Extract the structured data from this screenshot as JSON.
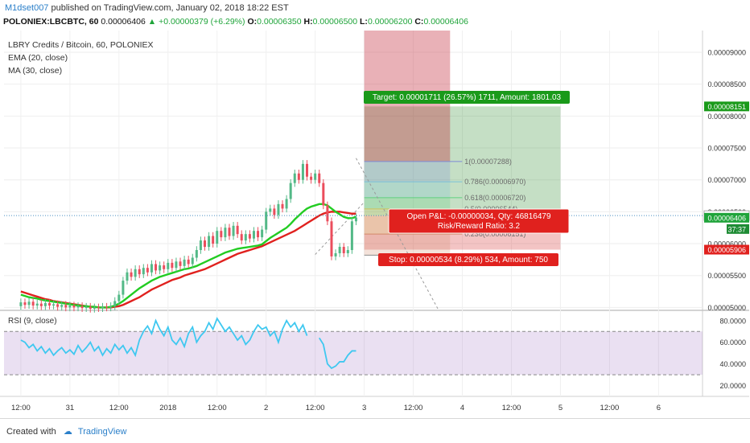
{
  "header": {
    "publisher": "M1dset007",
    "published_text": "published on TradingView.com, January 02, 2018 18:22 EST",
    "symbol": "POLONIEX:LBCBTC, 60",
    "last": "0.00006406",
    "change": "+0.00000379 (+6.29%)",
    "open_label": "O:",
    "open": "0.00006350",
    "high_label": "H:",
    "high": "0.00006500",
    "low_label": "L:",
    "low": "0.00006200",
    "close_label": "C:",
    "close": "0.00006406"
  },
  "footer": {
    "created_with": "Created with",
    "brand": "TradingView"
  },
  "colors": {
    "up": "#53b987",
    "down": "#eb4d5c",
    "ema": "#22cc22",
    "ma": "#e0211e",
    "rsi": "#3fc8f0",
    "rsi_band": "#7b3fae",
    "target": "#1a9a1a",
    "stop": "#e0211e"
  },
  "chart_data": {
    "type": "candlestick",
    "title": "LBRY Credits / Bitcoin, 60, POLONIEX",
    "indicators": [
      "EMA (20, close)",
      "MA (30, close)"
    ],
    "y_ticks": [
      "0.00009000",
      "0.00008500",
      "0.00008000",
      "0.00007500",
      "0.00007000",
      "0.00006500",
      "0.00006000",
      "0.00005500",
      "0.00005000"
    ],
    "ylim": [
      4.98e-05,
      9.34e-05
    ],
    "x_ticks": [
      {
        "label": "12:00",
        "t": 0
      },
      {
        "label": "31",
        "t": 12
      },
      {
        "label": "12:00",
        "t": 24
      },
      {
        "label": "2018",
        "t": 36
      },
      {
        "label": "12:00",
        "t": 48
      },
      {
        "label": "2",
        "t": 60
      },
      {
        "label": "12:00",
        "t": 72
      },
      {
        "label": "3",
        "t": 84
      },
      {
        "label": "12:00",
        "t": 96
      },
      {
        "label": "4",
        "t": 108
      },
      {
        "label": "12:00",
        "t": 120
      },
      {
        "label": "5",
        "t": 132
      },
      {
        "label": "12:00",
        "t": 144
      },
      {
        "label": "6",
        "t": 156
      }
    ],
    "price_badges": [
      {
        "label": "0.00008151",
        "value": 8.151e-05,
        "color": "#1a9a1a"
      },
      {
        "label": "0.00006440",
        "value": 6.44e-05,
        "color": "#ffffff",
        "text_color": "#000000"
      },
      {
        "label": "0.00006406",
        "value": 6.406e-05,
        "color": "#1fa43a"
      },
      {
        "label": "0.00005906",
        "value": 5.906e-05,
        "color": "#e0211e"
      }
    ],
    "countdown": "37:37",
    "candles": [
      {
        "o": 5.02,
        "c": 5.08
      },
      {
        "o": 5.08,
        "c": 5.04
      },
      {
        "o": 5.04,
        "c": 5.09
      },
      {
        "o": 5.09,
        "c": 5.03
      },
      {
        "o": 5.03,
        "c": 5.06
      },
      {
        "o": 5.06,
        "c": 5.02
      },
      {
        "o": 5.02,
        "c": 5.07
      },
      {
        "o": 5.07,
        "c": 5.03
      },
      {
        "o": 5.03,
        "c": 5.05
      },
      {
        "o": 5.05,
        "c": 5.01
      },
      {
        "o": 5.01,
        "c": 5.04
      },
      {
        "o": 5.04,
        "c": 5.0
      },
      {
        "o": 5.0,
        "c": 5.03
      },
      {
        "o": 5.03,
        "c": 5.0
      },
      {
        "o": 5.0,
        "c": 5.02
      },
      {
        "o": 5.02,
        "c": 4.99
      },
      {
        "o": 4.99,
        "c": 5.01
      },
      {
        "o": 5.01,
        "c": 4.98
      },
      {
        "o": 4.98,
        "c": 5.0
      },
      {
        "o": 5.0,
        "c": 4.99
      },
      {
        "o": 4.99,
        "c": 5.01
      },
      {
        "o": 5.01,
        "c": 5.0
      },
      {
        "o": 5.0,
        "c": 5.02
      },
      {
        "o": 5.02,
        "c": 5.1
      },
      {
        "o": 5.1,
        "c": 5.2
      },
      {
        "o": 5.2,
        "c": 5.42
      },
      {
        "o": 5.42,
        "c": 5.55
      },
      {
        "o": 5.55,
        "c": 5.48
      },
      {
        "o": 5.48,
        "c": 5.6
      },
      {
        "o": 5.6,
        "c": 5.52
      },
      {
        "o": 5.52,
        "c": 5.62
      },
      {
        "o": 5.62,
        "c": 5.55
      },
      {
        "o": 5.55,
        "c": 5.68
      },
      {
        "o": 5.68,
        "c": 5.58
      },
      {
        "o": 5.58,
        "c": 5.66
      },
      {
        "o": 5.66,
        "c": 5.6
      },
      {
        "o": 5.6,
        "c": 5.7
      },
      {
        "o": 5.7,
        "c": 5.62
      },
      {
        "o": 5.62,
        "c": 5.72
      },
      {
        "o": 5.72,
        "c": 5.65
      },
      {
        "o": 5.65,
        "c": 5.75
      },
      {
        "o": 5.75,
        "c": 5.68
      },
      {
        "o": 5.68,
        "c": 5.78
      },
      {
        "o": 5.78,
        "c": 5.9
      },
      {
        "o": 5.9,
        "c": 6.05
      },
      {
        "o": 6.05,
        "c": 5.95
      },
      {
        "o": 5.95,
        "c": 6.12
      },
      {
        "o": 6.12,
        "c": 6.0
      },
      {
        "o": 6.0,
        "c": 6.2
      },
      {
        "o": 6.2,
        "c": 6.1
      },
      {
        "o": 6.1,
        "c": 6.25
      },
      {
        "o": 6.25,
        "c": 6.12
      },
      {
        "o": 6.12,
        "c": 6.28
      },
      {
        "o": 6.28,
        "c": 6.15
      },
      {
        "o": 6.15,
        "c": 6.05
      },
      {
        "o": 6.05,
        "c": 6.15
      },
      {
        "o": 6.15,
        "c": 6.08
      },
      {
        "o": 6.08,
        "c": 6.2
      },
      {
        "o": 6.2,
        "c": 6.1
      },
      {
        "o": 6.1,
        "c": 6.22
      },
      {
        "o": 6.22,
        "c": 6.5
      },
      {
        "o": 6.5,
        "c": 6.55
      },
      {
        "o": 6.55,
        "c": 6.45
      },
      {
        "o": 6.45,
        "c": 6.62
      },
      {
        "o": 6.62,
        "c": 6.55
      },
      {
        "o": 6.55,
        "c": 6.7
      },
      {
        "o": 6.7,
        "c": 6.95
      },
      {
        "o": 6.95,
        "c": 7.1
      },
      {
        "o": 7.1,
        "c": 7.0
      },
      {
        "o": 7.0,
        "c": 7.25
      },
      {
        "o": 7.25,
        "c": 7.05
      },
      {
        "o": 7.05,
        "c": 7.0
      },
      {
        "o": 7.0,
        "c": 7.1
      },
      {
        "o": 7.1,
        "c": 6.95
      },
      {
        "o": 6.95,
        "c": 6.6
      },
      {
        "o": 6.6,
        "c": 6.35
      },
      {
        "o": 6.35,
        "c": 5.8
      },
      {
        "o": 5.8,
        "c": 5.85
      },
      {
        "o": 5.85,
        "c": 5.95
      },
      {
        "o": 5.95,
        "c": 5.85
      },
      {
        "o": 5.85,
        "c": 5.9
      },
      {
        "o": 5.9,
        "c": 6.35
      },
      {
        "o": 6.35,
        "c": 6.41
      }
    ],
    "ema": [
      5.2,
      5.18,
      5.16,
      5.15,
      5.14,
      5.12,
      5.11,
      5.1,
      5.09,
      5.08,
      5.07,
      5.06,
      5.05,
      5.04,
      5.03,
      5.02,
      5.02,
      5.01,
      5.01,
      5.0,
      5.0,
      5.0,
      5.01,
      5.03,
      5.06,
      5.1,
      5.15,
      5.2,
      5.25,
      5.3,
      5.34,
      5.38,
      5.42,
      5.45,
      5.48,
      5.5,
      5.52,
      5.54,
      5.56,
      5.58,
      5.6,
      5.61,
      5.63,
      5.65,
      5.68,
      5.71,
      5.74,
      5.77,
      5.8,
      5.83,
      5.86,
      5.88,
      5.9,
      5.92,
      5.93,
      5.94,
      5.95,
      5.96,
      5.97,
      5.99,
      6.04,
      6.09,
      6.13,
      6.17,
      6.21,
      6.25,
      6.31,
      6.38,
      6.44,
      6.5,
      6.55,
      6.58,
      6.6,
      6.62,
      6.62,
      6.6,
      6.55,
      6.5,
      6.46,
      6.42,
      6.4,
      6.4,
      6.42
    ],
    "ma": [
      5.25,
      5.23,
      5.21,
      5.19,
      5.17,
      5.15,
      5.13,
      5.12,
      5.1,
      5.09,
      5.08,
      5.07,
      5.06,
      5.05,
      5.04,
      5.03,
      5.02,
      5.01,
      5.01,
      5.0,
      5.0,
      5.0,
      5.0,
      5.01,
      5.02,
      5.04,
      5.07,
      5.1,
      5.13,
      5.16,
      5.2,
      5.24,
      5.28,
      5.31,
      5.34,
      5.37,
      5.4,
      5.43,
      5.45,
      5.47,
      5.5,
      5.52,
      5.54,
      5.56,
      5.58,
      5.6,
      5.63,
      5.66,
      5.69,
      5.72,
      5.75,
      5.78,
      5.81,
      5.84,
      5.86,
      5.88,
      5.9,
      5.92,
      5.94,
      5.96,
      5.99,
      6.02,
      6.05,
      6.08,
      6.11,
      6.14,
      6.17,
      6.2,
      6.24,
      6.28,
      6.32,
      6.36,
      6.4,
      6.44,
      6.47,
      6.49,
      6.5,
      6.5,
      6.5,
      6.49,
      6.48,
      6.47,
      6.47
    ],
    "position": {
      "entry": 6.44e-05,
      "target": 8.151e-05,
      "stop": 5.906e-05,
      "t_start": 84,
      "t_end": 132,
      "target_label": "Target: 0.00001711 (26.57%) 1711, Amount: 1801.03",
      "stop_label": "Stop: 0.00000534 (8.29%) 534, Amount: 750",
      "pnl_label": "Open P&L: -0.00000034, Qty: 46816479",
      "rr_label": "Risk/Reward Ratio: 3.2"
    },
    "fib": [
      {
        "label": "1(0.00007288)",
        "value": 7.288e-05
      },
      {
        "label": "0.786(0.00006970)",
        "value": 6.97e-05
      },
      {
        "label": "0.618(0.00006720)",
        "value": 6.72e-05
      },
      {
        "label": "0.5(0.00006544)",
        "value": 6.544e-05
      },
      {
        "label": "0.236(0.00006151)",
        "value": 6.151e-05
      }
    ],
    "rsi": {
      "label": "RSI (9, close)",
      "y_ticks": [
        "80.0000",
        "60.0000",
        "40.0000",
        "20.0000"
      ],
      "ylim": [
        10,
        88
      ],
      "upper": 70,
      "lower": 30,
      "values": [
        62,
        60,
        55,
        58,
        52,
        56,
        50,
        54,
        48,
        52,
        55,
        50,
        53,
        49,
        57,
        51,
        55,
        60,
        52,
        56,
        48,
        54,
        50,
        58,
        53,
        57,
        50,
        55,
        48,
        62,
        70,
        75,
        68,
        80,
        72,
        66,
        74,
        62,
        58,
        64,
        56,
        68,
        74,
        60,
        66,
        70,
        78,
        72,
        82,
        76,
        70,
        74,
        68,
        62,
        66,
        58,
        62,
        70,
        76,
        72,
        74,
        66,
        70,
        60,
        72,
        80,
        74,
        78,
        70,
        76,
        66,
        72,
        68,
        64,
        58,
        40,
        36,
        38,
        42,
        42,
        48,
        52,
        52
      ]
    }
  }
}
